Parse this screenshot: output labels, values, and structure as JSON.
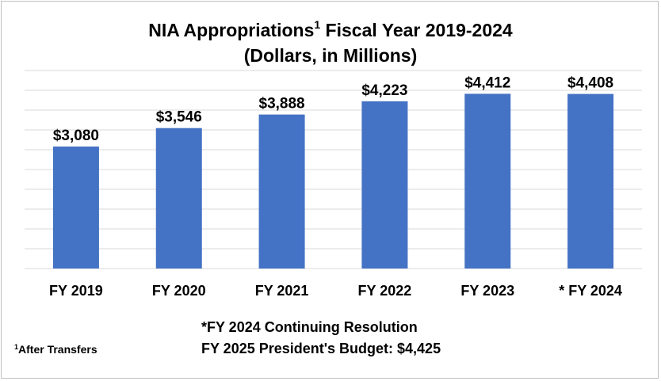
{
  "chart_data": {
    "type": "bar",
    "title_main": "NIA Appropriations",
    "title_sup": "1",
    "title_rest": " Fiscal Year 2019-2024",
    "subtitle": "(Dollars, in Millions)",
    "categories": [
      "FY 2019",
      "FY 2020",
      "FY 2021",
      "FY 2022",
      "FY 2023",
      "* FY 2024"
    ],
    "values": [
      3080,
      3546,
      3888,
      4223,
      4412,
      4408
    ],
    "data_labels": [
      "$3,080",
      "$3,546",
      "$3,888",
      "$4,223",
      "$4,412",
      "$4,408"
    ],
    "ylim": [
      0,
      5000
    ],
    "gridlines": true,
    "bar_color": "#4472C4",
    "grid_color": "#d9d9d9"
  },
  "notes": {
    "footnote_sup": "1",
    "footnote_text": "After Transfers",
    "continuing_resolution": "*FY 2024 Continuing Resolution",
    "presidents_budget": "FY 2025 President's Budget: $4,425"
  }
}
